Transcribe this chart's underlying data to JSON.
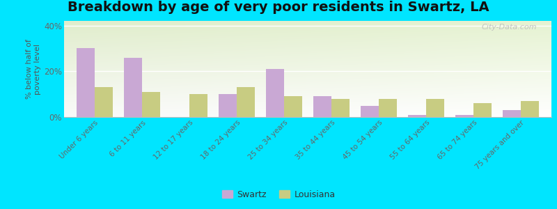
{
  "title": "Breakdown by age of very poor residents in Swartz, LA",
  "categories": [
    "Under 6 years",
    "6 to 11 years",
    "12 to 17 years",
    "18 to 24 years",
    "25 to 34 years",
    "35 to 44 years",
    "45 to 54 years",
    "55 to 64 years",
    "65 to 74 years",
    "75 years and over"
  ],
  "swartz_values": [
    30,
    26,
    0,
    10,
    21,
    9,
    5,
    1,
    1,
    3
  ],
  "louisiana_values": [
    13,
    11,
    10,
    13,
    9,
    8,
    8,
    8,
    6,
    7
  ],
  "swartz_color": "#c9a8d4",
  "louisiana_color": "#c8cc82",
  "ylabel": "% below half of\npoverty level",
  "ylim": [
    0,
    42
  ],
  "yticks": [
    0,
    20,
    40
  ],
  "ytick_labels": [
    "0%",
    "20%",
    "40%"
  ],
  "background_outer": "#00e5ff",
  "background_chart_top_left": "#d4e8b0",
  "background_chart_top_right": "#e8f0d0",
  "background_chart_bottom": "#f5f8ee",
  "watermark": "City-Data.com",
  "title_fontsize": 14,
  "bar_width": 0.38
}
